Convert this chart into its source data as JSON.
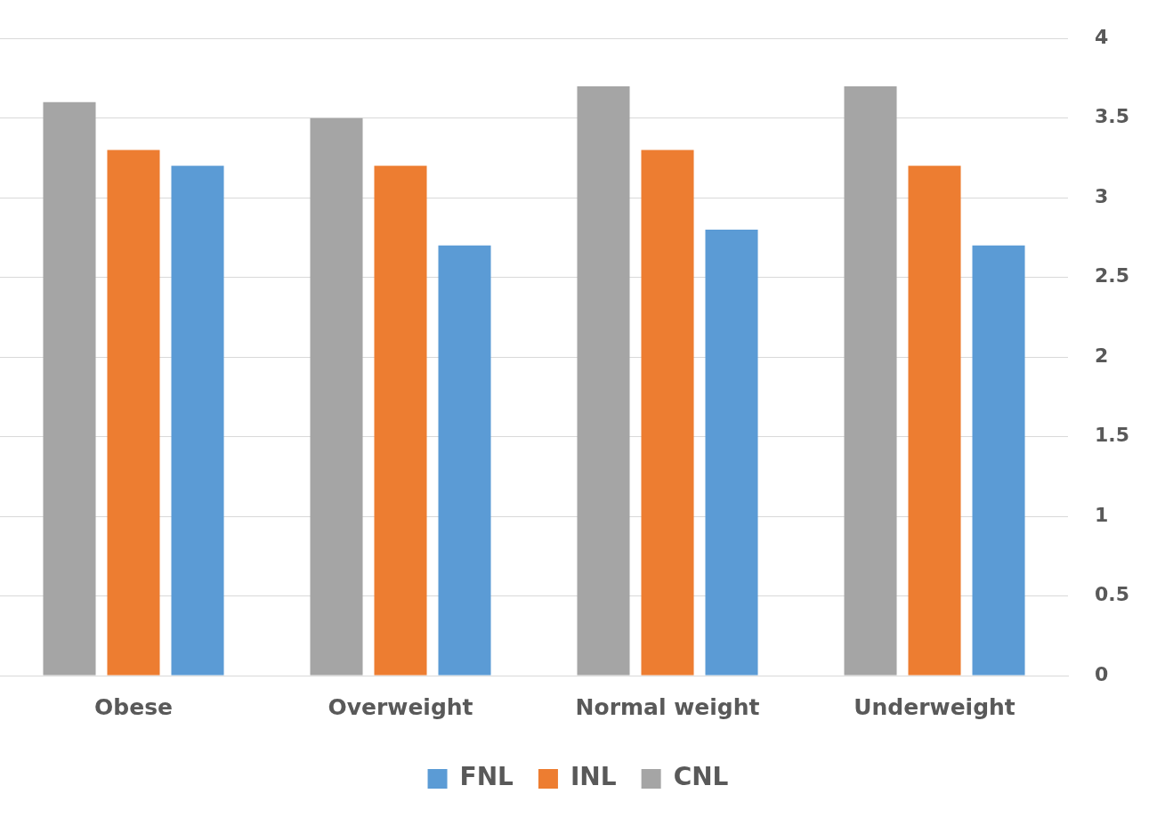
{
  "chart_data": {
    "type": "bar",
    "categories": [
      "Obese",
      "Overweight",
      "Normal weight",
      "Underweight"
    ],
    "series": [
      {
        "name": "CNL",
        "color": "#a5a5a5",
        "values": [
          3.6,
          3.5,
          3.7,
          3.7
        ]
      },
      {
        "name": "INL",
        "color": "#ed7d31",
        "values": [
          3.3,
          3.2,
          3.3,
          3.2
        ]
      },
      {
        "name": "FNL",
        "color": "#5b9bd5",
        "values": [
          3.2,
          2.7,
          2.8,
          2.7
        ]
      }
    ],
    "ylim": [
      0,
      4
    ],
    "yticks": [
      0,
      0.5,
      1,
      1.5,
      2,
      2.5,
      3,
      3.5,
      4
    ],
    "grid": "y",
    "legend": "bottom"
  }
}
